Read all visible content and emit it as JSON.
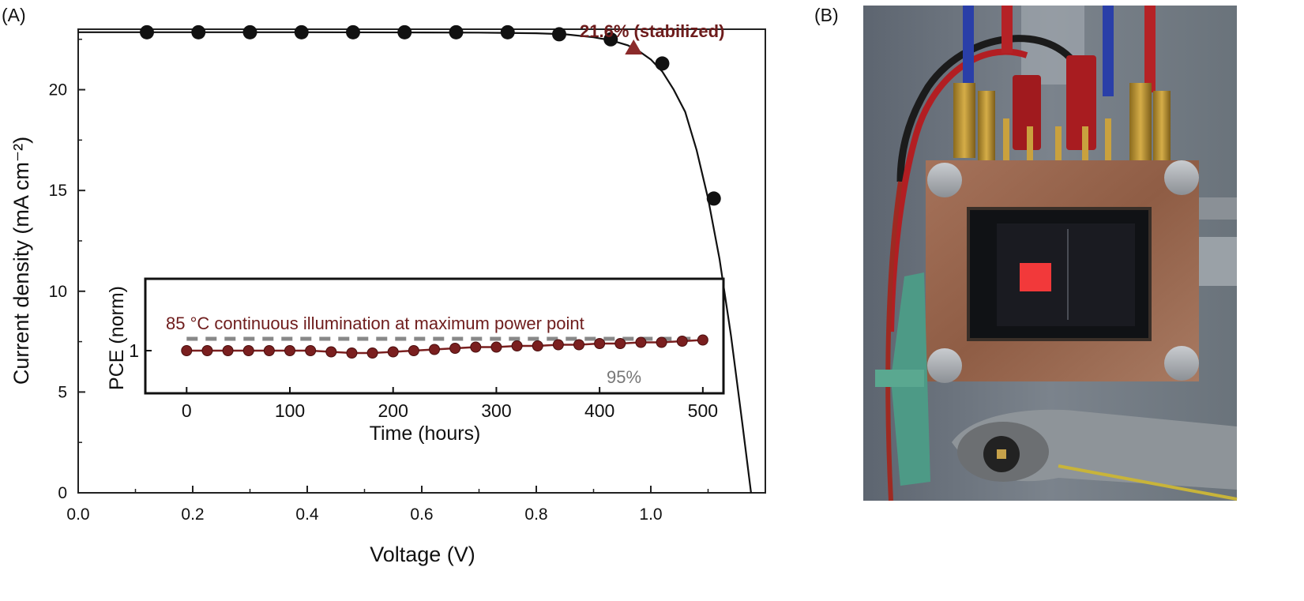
{
  "panel_labels": {
    "a": "(A)",
    "b": "(B)"
  },
  "colors": {
    "jv_marker": "#111111",
    "jv_line": "#111111",
    "stabilized_marker": "#8b2a2a",
    "annotation": "#6e1c1c",
    "inset_series": "#7a1f1f",
    "inset_reference": "#888888"
  },
  "chart_data": [
    {
      "panel": "A",
      "type": "line",
      "xlabel": "Voltage (V)",
      "ylabel": "Current density (mA cm⁻²)",
      "xlim": [
        0.0,
        1.2
      ],
      "ylim": [
        0,
        23
      ],
      "x_ticks": [
        "0.0",
        "0.2",
        "0.4",
        "0.6",
        "0.8",
        "1.0"
      ],
      "y_ticks": [
        "0",
        "5",
        "10",
        "15",
        "20"
      ],
      "grid": false,
      "series": [
        {
          "curve": {
            "x": [
              0.0,
              0.2,
              0.4,
              0.6,
              0.7,
              0.8,
              0.85,
              0.9,
              0.93,
              0.96,
              0.98,
              1.0,
              1.02,
              1.04,
              1.06,
              1.08,
              1.1,
              1.12,
              1.14,
              1.16,
              1.175
            ],
            "y": [
              22.85,
              22.85,
              22.85,
              22.84,
              22.83,
              22.8,
              22.75,
              22.6,
              22.45,
              22.2,
              21.9,
              21.5,
              20.9,
              20.0,
              18.9,
              17.0,
              14.6,
              11.6,
              7.8,
              3.4,
              0
            ]
          },
          "markers": {
            "x": [
              0.12,
              0.21,
              0.3,
              0.39,
              0.48,
              0.57,
              0.66,
              0.75,
              0.84,
              0.93,
              1.02,
              1.11
            ],
            "y": [
              22.85,
              22.85,
              22.85,
              22.85,
              22.85,
              22.85,
              22.85,
              22.85,
              22.75,
              22.5,
              21.3,
              14.6
            ]
          }
        }
      ],
      "stabilized_point": {
        "x": 0.97,
        "y": 22.1,
        "label": "21.6% (stabilized)"
      }
    },
    {
      "panel": "A-inset",
      "type": "line",
      "title": "85 °C continuous illumination at maximum power point",
      "xlabel": "Time (hours)",
      "ylabel": "PCE (norm)",
      "xlim": [
        -40,
        520
      ],
      "x_ticks": [
        "0",
        "100",
        "200",
        "300",
        "400",
        "500"
      ],
      "y_ticks": [
        "1"
      ],
      "series": [
        {
          "x": [
            0,
            20,
            40,
            60,
            80,
            100,
            120,
            140,
            160,
            180,
            200,
            220,
            240,
            260,
            280,
            300,
            320,
            340,
            360,
            380,
            400,
            420,
            440,
            460,
            480,
            500
          ],
          "y": [
            1.0,
            1.0,
            1.0,
            1.0,
            1.0,
            1.0,
            1.0,
            1.005,
            1.01,
            1.01,
            1.005,
            1.0,
            0.995,
            0.99,
            0.985,
            0.985,
            0.98,
            0.98,
            0.975,
            0.975,
            0.97,
            0.97,
            0.965,
            0.965,
            0.96,
            0.955
          ]
        }
      ],
      "reference_line": {
        "y": 0.95,
        "label": "95%"
      }
    }
  ]
}
